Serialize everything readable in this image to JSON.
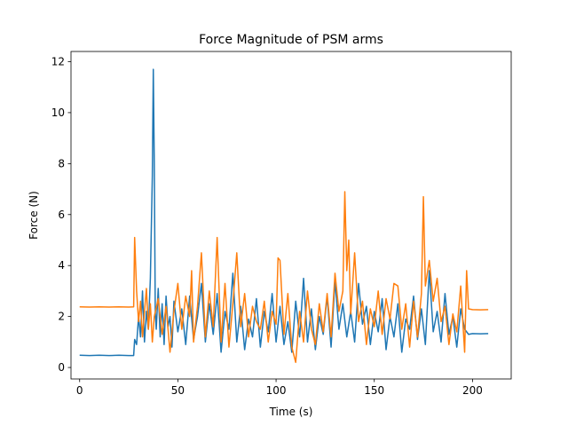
{
  "chart_data": {
    "type": "line",
    "title": "Force Magnitude of PSM arms",
    "xlabel": "Time (s)",
    "ylabel": "Force (N)",
    "xlim": [
      -4.4,
      219.7
    ],
    "ylim": [
      -0.45,
      12.4
    ],
    "x_ticks": [
      0,
      50,
      100,
      150,
      200
    ],
    "y_ticks": [
      0,
      2,
      4,
      6,
      8,
      10,
      12
    ],
    "grid": false,
    "legend": "none",
    "series": [
      {
        "color": "#1f77b4",
        "points": [
          [
            0,
            0.48
          ],
          [
            5,
            0.47
          ],
          [
            10,
            0.48
          ],
          [
            15,
            0.47
          ],
          [
            20,
            0.48
          ],
          [
            25,
            0.47
          ],
          [
            27.5,
            0.47
          ],
          [
            28,
            1.1
          ],
          [
            29,
            0.9
          ],
          [
            30,
            2.0
          ],
          [
            31,
            1.2
          ],
          [
            32,
            3.0
          ],
          [
            33,
            1.0
          ],
          [
            34,
            2.2
          ],
          [
            35,
            1.5
          ],
          [
            36,
            3.5
          ],
          [
            37,
            7.5
          ],
          [
            37.5,
            11.7
          ],
          [
            38,
            8.0
          ],
          [
            38.5,
            2.2
          ],
          [
            39,
            1.5
          ],
          [
            40,
            3.1
          ],
          [
            41,
            1.2
          ],
          [
            42,
            2.5
          ],
          [
            43,
            0.9
          ],
          [
            44,
            2.8
          ],
          [
            45,
            1.6
          ],
          [
            46,
            2.0
          ],
          [
            47,
            0.8
          ],
          [
            48,
            2.6
          ],
          [
            50,
            1.4
          ],
          [
            52,
            2.3
          ],
          [
            54,
            0.9
          ],
          [
            56,
            2.8
          ],
          [
            58,
            1.1
          ],
          [
            60,
            2.0
          ],
          [
            62,
            3.3
          ],
          [
            64,
            1.0
          ],
          [
            66,
            2.5
          ],
          [
            68,
            1.3
          ],
          [
            70,
            2.9
          ],
          [
            72,
            0.6
          ],
          [
            74,
            2.2
          ],
          [
            76,
            1.5
          ],
          [
            78,
            3.7
          ],
          [
            80,
            1.0
          ],
          [
            82,
            2.4
          ],
          [
            84,
            0.7
          ],
          [
            86,
            1.9
          ],
          [
            88,
            1.2
          ],
          [
            90,
            2.7
          ],
          [
            92,
            0.8
          ],
          [
            94,
            2.2
          ],
          [
            96,
            1.4
          ],
          [
            98,
            2.9
          ],
          [
            100,
            1.0
          ],
          [
            102,
            2.4
          ],
          [
            104,
            0.9
          ],
          [
            106,
            1.8
          ],
          [
            108,
            0.6
          ],
          [
            110,
            2.6
          ],
          [
            112,
            1.2
          ],
          [
            114,
            3.5
          ],
          [
            116,
            1.0
          ],
          [
            118,
            2.3
          ],
          [
            120,
            0.7
          ],
          [
            122,
            2.0
          ],
          [
            124,
            1.3
          ],
          [
            126,
            2.8
          ],
          [
            128,
            0.8
          ],
          [
            130,
            3.4
          ],
          [
            132,
            1.5
          ],
          [
            134,
            2.5
          ],
          [
            136,
            1.2
          ],
          [
            138,
            2.2
          ],
          [
            140,
            1.0
          ],
          [
            142,
            3.3
          ],
          [
            144,
            1.7
          ],
          [
            146,
            2.4
          ],
          [
            148,
            0.9
          ],
          [
            150,
            2.2
          ],
          [
            152,
            1.4
          ],
          [
            154,
            2.7
          ],
          [
            156,
            0.7
          ],
          [
            158,
            2.0
          ],
          [
            160,
            1.2
          ],
          [
            162,
            2.5
          ],
          [
            164,
            0.6
          ],
          [
            166,
            1.9
          ],
          [
            168,
            1.5
          ],
          [
            170,
            2.8
          ],
          [
            172,
            1.1
          ],
          [
            174,
            2.3
          ],
          [
            176,
            0.9
          ],
          [
            178,
            3.8
          ],
          [
            180,
            1.4
          ],
          [
            182,
            2.2
          ],
          [
            184,
            1.0
          ],
          [
            186,
            2.9
          ],
          [
            188,
            1.3
          ],
          [
            190,
            2.0
          ],
          [
            192,
            0.8
          ],
          [
            194,
            2.3
          ],
          [
            196,
            1.5
          ],
          [
            198,
            1.3
          ],
          [
            200,
            1.33
          ],
          [
            204,
            1.32
          ],
          [
            208,
            1.33
          ]
        ]
      },
      {
        "color": "#ff7f0e",
        "points": [
          [
            0,
            2.38
          ],
          [
            5,
            2.37
          ],
          [
            10,
            2.38
          ],
          [
            15,
            2.37
          ],
          [
            20,
            2.38
          ],
          [
            25,
            2.37
          ],
          [
            27.5,
            2.38
          ],
          [
            28,
            5.1
          ],
          [
            29,
            3.0
          ],
          [
            30,
            1.8
          ],
          [
            31,
            2.6
          ],
          [
            32,
            1.2
          ],
          [
            33,
            2.2
          ],
          [
            34,
            3.1
          ],
          [
            35,
            1.5
          ],
          [
            36,
            2.5
          ],
          [
            37,
            1.0
          ],
          [
            38,
            2.0
          ],
          [
            40,
            2.7
          ],
          [
            42,
            1.3
          ],
          [
            44,
            2.4
          ],
          [
            46,
            0.6
          ],
          [
            48,
            2.2
          ],
          [
            50,
            3.3
          ],
          [
            52,
            1.5
          ],
          [
            54,
            2.8
          ],
          [
            56,
            2.0
          ],
          [
            57,
            3.8
          ],
          [
            58,
            1.0
          ],
          [
            60,
            2.4
          ],
          [
            62,
            4.5
          ],
          [
            64,
            1.2
          ],
          [
            66,
            3.0
          ],
          [
            68,
            1.6
          ],
          [
            70,
            5.1
          ],
          [
            72,
            1.0
          ],
          [
            74,
            3.3
          ],
          [
            76,
            0.8
          ],
          [
            78,
            2.5
          ],
          [
            80,
            4.5
          ],
          [
            82,
            1.6
          ],
          [
            84,
            2.9
          ],
          [
            86,
            1.2
          ],
          [
            88,
            2.4
          ],
          [
            90,
            1.8
          ],
          [
            92,
            1.5
          ],
          [
            94,
            2.6
          ],
          [
            96,
            1.0
          ],
          [
            98,
            2.2
          ],
          [
            100,
            1.7
          ],
          [
            101,
            4.3
          ],
          [
            102,
            4.2
          ],
          [
            104,
            1.3
          ],
          [
            106,
            2.9
          ],
          [
            108,
            0.8
          ],
          [
            110,
            0.2
          ],
          [
            112,
            2.2
          ],
          [
            114,
            1.0
          ],
          [
            116,
            3.0
          ],
          [
            118,
            1.5
          ],
          [
            120,
            0.9
          ],
          [
            122,
            2.5
          ],
          [
            124,
            1.4
          ],
          [
            126,
            2.9
          ],
          [
            128,
            1.2
          ],
          [
            130,
            3.7
          ],
          [
            132,
            2.2
          ],
          [
            134,
            3.0
          ],
          [
            135,
            6.9
          ],
          [
            136,
            3.8
          ],
          [
            137,
            5.0
          ],
          [
            138,
            2.1
          ],
          [
            140,
            4.5
          ],
          [
            142,
            1.8
          ],
          [
            144,
            2.6
          ],
          [
            146,
            0.9
          ],
          [
            148,
            2.3
          ],
          [
            150,
            1.6
          ],
          [
            152,
            3.0
          ],
          [
            154,
            1.3
          ],
          [
            156,
            2.7
          ],
          [
            158,
            1.9
          ],
          [
            160,
            3.3
          ],
          [
            162,
            3.2
          ],
          [
            164,
            1.5
          ],
          [
            166,
            2.5
          ],
          [
            168,
            0.8
          ],
          [
            170,
            2.6
          ],
          [
            172,
            1.2
          ],
          [
            174,
            2.9
          ],
          [
            175,
            6.7
          ],
          [
            176,
            3.2
          ],
          [
            178,
            4.2
          ],
          [
            180,
            2.6
          ],
          [
            182,
            3.5
          ],
          [
            184,
            1.8
          ],
          [
            186,
            2.4
          ],
          [
            188,
            0.9
          ],
          [
            190,
            2.1
          ],
          [
            192,
            1.4
          ],
          [
            194,
            3.2
          ],
          [
            196,
            0.6
          ],
          [
            197,
            3.8
          ],
          [
            198,
            2.3
          ],
          [
            200,
            2.27
          ],
          [
            204,
            2.26
          ],
          [
            208,
            2.27
          ]
        ]
      }
    ]
  }
}
